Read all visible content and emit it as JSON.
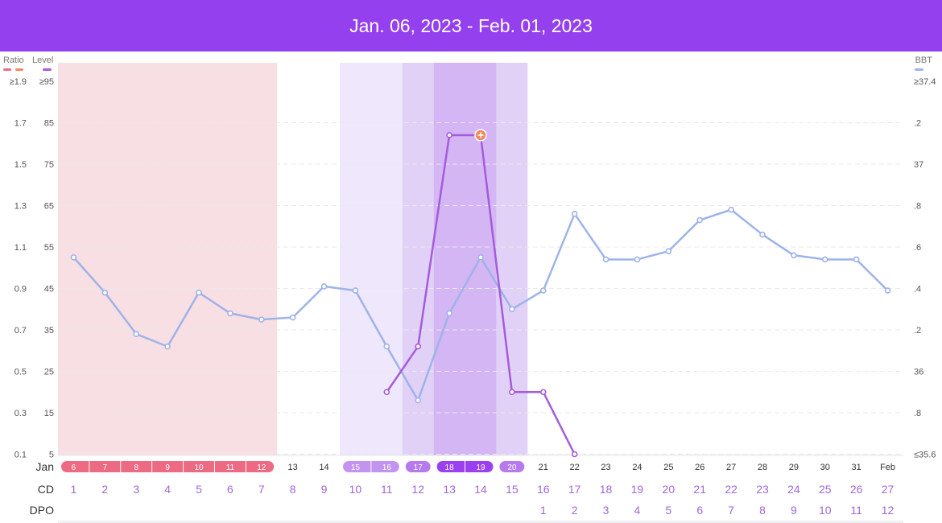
{
  "header": {
    "title": "Jan. 06, 2023 - Feb. 01, 2023"
  },
  "colors": {
    "header_bg": "#9440ee",
    "period": "#ec6a82",
    "period_bg": "#f8dfe3",
    "fertile_light": "#efe7fb",
    "fertile_mid": "#e2d1f7",
    "fertile_dark": "#d3b6f3",
    "bbt_line": "#9eb3e9",
    "level_line": "#a55bdc",
    "peak_marker": "#f08a5d",
    "axis_text": "#555555",
    "row_number": "#a068d8"
  },
  "chart_data": {
    "type": "line",
    "legend": {
      "left": [
        "Ratio",
        "Level"
      ],
      "right": [
        "BBT"
      ]
    },
    "left_axis_ratio": {
      "label": "Ratio",
      "ticks": [
        "≥1.9",
        "1.7",
        "1.5",
        "1.3",
        "1.1",
        "0.9",
        "0.7",
        "0.5",
        "0.3",
        "0.1"
      ],
      "range": [
        0.1,
        1.9
      ]
    },
    "left_axis_level": {
      "label": "Level",
      "ticks": [
        "≥95",
        "85",
        "75",
        "65",
        "55",
        "45",
        "35",
        "25",
        "15",
        "5"
      ],
      "range": [
        5,
        95
      ]
    },
    "right_axis_bbt": {
      "label": "BBT",
      "ticks": [
        "≥37.4",
        ".2",
        "37",
        ".8",
        ".6",
        ".4",
        ".2",
        "36",
        ".8",
        "≤35.6"
      ],
      "range": [
        35.6,
        37.4
      ]
    },
    "days": {
      "row_label": "Jan",
      "labels": [
        "6",
        "7",
        "8",
        "9",
        "10",
        "11",
        "12",
        "13",
        "14",
        "15",
        "16",
        "17",
        "18",
        "19",
        "20",
        "21",
        "22",
        "23",
        "24",
        "25",
        "26",
        "27",
        "28",
        "29",
        "30",
        "31",
        "Feb"
      ]
    },
    "cycle_day": {
      "row_label": "CD",
      "values": [
        "1",
        "2",
        "3",
        "4",
        "5",
        "6",
        "7",
        "8",
        "9",
        "10",
        "11",
        "12",
        "13",
        "14",
        "15",
        "16",
        "17",
        "18",
        "19",
        "20",
        "21",
        "22",
        "23",
        "24",
        "25",
        "26",
        "27"
      ]
    },
    "dpo": {
      "row_label": "DPO",
      "values": [
        "",
        "",
        "",
        "",
        "",
        "",
        "",
        "",
        "",
        "",
        "",
        "",
        "",
        "",
        "",
        "1",
        "2",
        "3",
        "4",
        "5",
        "6",
        "7",
        "8",
        "9",
        "10",
        "11",
        "12"
      ]
    },
    "day_markers": [
      "period",
      "period",
      "period",
      "period",
      "period",
      "period",
      "period",
      "",
      "",
      "fertile_light",
      "fertile_light",
      "fertile_mid",
      "fertile_dark",
      "fertile_dark",
      "fertile_mid",
      "",
      "",
      "",
      "",
      "",
      "",
      "",
      "",
      "",
      "",
      "",
      ""
    ],
    "series": [
      {
        "name": "BBT",
        "axis": "right",
        "values": [
          36.55,
          36.38,
          36.18,
          36.12,
          36.38,
          36.28,
          36.25,
          36.26,
          36.41,
          36.39,
          36.12,
          35.86,
          36.28,
          36.55,
          36.3,
          36.39,
          36.76,
          36.54,
          36.54,
          36.58,
          36.73,
          36.78,
          36.66,
          36.56,
          36.54,
          36.54,
          36.39
        ]
      },
      {
        "name": "Level",
        "axis": "left_level",
        "values": [
          null,
          null,
          null,
          null,
          null,
          null,
          null,
          null,
          null,
          null,
          20,
          31,
          82,
          82,
          20,
          20,
          5,
          null,
          null,
          null,
          null,
          null,
          null,
          null,
          null,
          null,
          null
        ],
        "peak_index": 13
      }
    ]
  }
}
